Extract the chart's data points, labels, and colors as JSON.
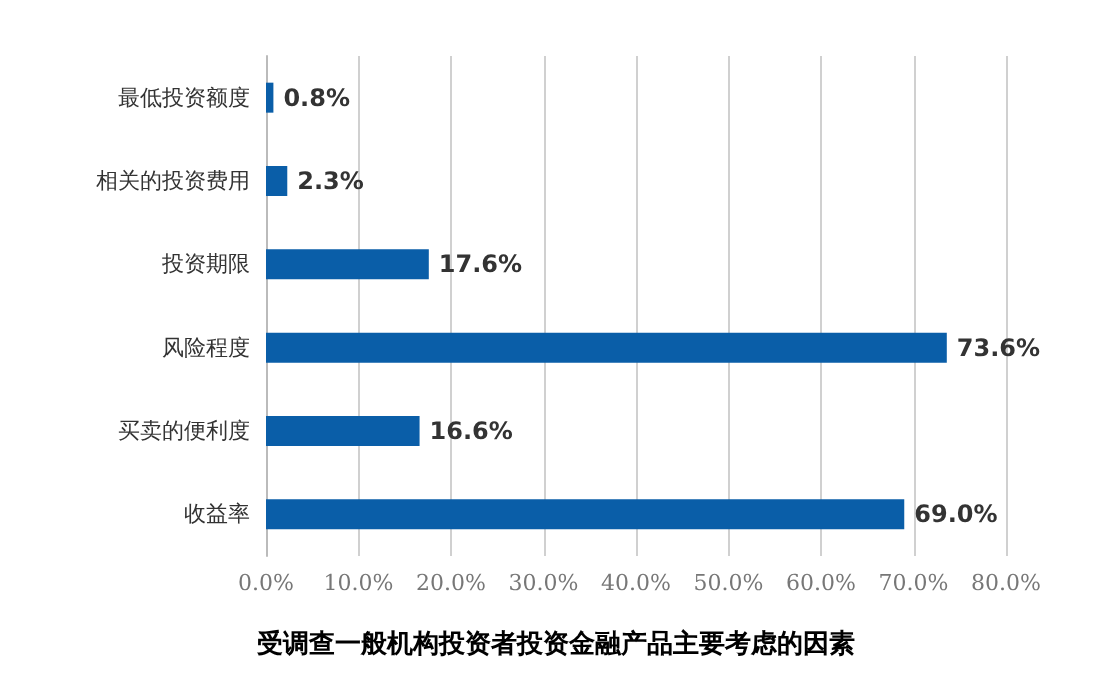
{
  "chart_data": {
    "type": "bar",
    "orientation": "horizontal",
    "title": "受调查一般机构投资者投资金融产品主要考虑的因素",
    "categories": [
      "最低投资额度",
      "相关的投资费用",
      "投资期限",
      "风险程度",
      "买卖的便利度",
      "收益率"
    ],
    "values": [
      0.8,
      2.3,
      17.6,
      73.6,
      16.6,
      69.0
    ],
    "value_labels": [
      "0.8%",
      "2.3%",
      "17.6%",
      "73.6%",
      "16.6%",
      "69.0%"
    ],
    "color": "#0a5ea8",
    "xlim": [
      0,
      80
    ],
    "xticks": [
      {
        "value": 0,
        "label": "0.0%"
      },
      {
        "value": 10,
        "label": "10.0%"
      },
      {
        "value": 20,
        "label": "20.0%"
      },
      {
        "value": 30,
        "label": "30.0%"
      },
      {
        "value": 40,
        "label": "40.0%"
      },
      {
        "value": 50,
        "label": "50.0%"
      },
      {
        "value": 60,
        "label": "60.0%"
      },
      {
        "value": 70,
        "label": "70.0%"
      },
      {
        "value": 80,
        "label": "80.0%"
      }
    ],
    "grid": "x"
  }
}
